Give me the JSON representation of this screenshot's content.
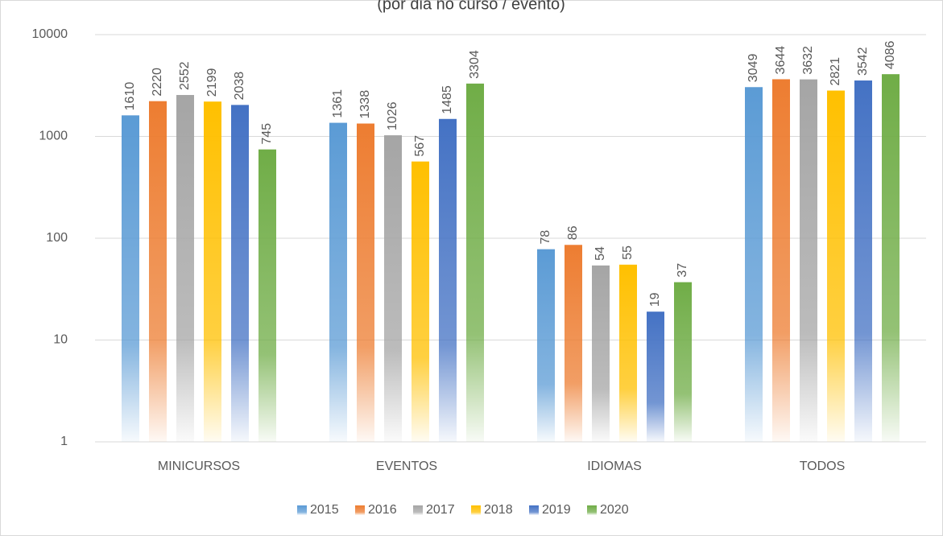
{
  "chart_data": {
    "type": "bar",
    "subtitle": "(por dia no curso / evento)",
    "categories": [
      "MINICURSOS",
      "EVENTOS",
      "IDIOMAS",
      "TODOS"
    ],
    "series": [
      {
        "name": "2015",
        "color": "#5b9bd5",
        "values": [
          1610,
          1361,
          78,
          3049
        ]
      },
      {
        "name": "2016",
        "color": "#ed7d31",
        "values": [
          2220,
          1338,
          86,
          3644
        ]
      },
      {
        "name": "2017",
        "color": "#a5a5a5",
        "values": [
          2552,
          1026,
          54,
          3632
        ]
      },
      {
        "name": "2018",
        "color": "#ffc000",
        "values": [
          2199,
          567,
          55,
          2821
        ]
      },
      {
        "name": "2019",
        "color": "#4472c4",
        "values": [
          2038,
          1485,
          19,
          3542
        ]
      },
      {
        "name": "2020",
        "color": "#70ad47",
        "values": [
          745,
          3304,
          37,
          4086
        ]
      }
    ],
    "ylim": [
      1,
      10000
    ],
    "yticks": [
      1,
      10,
      100,
      1000,
      10000
    ],
    "log_scale": true,
    "grid": true,
    "legend": "bottom"
  }
}
